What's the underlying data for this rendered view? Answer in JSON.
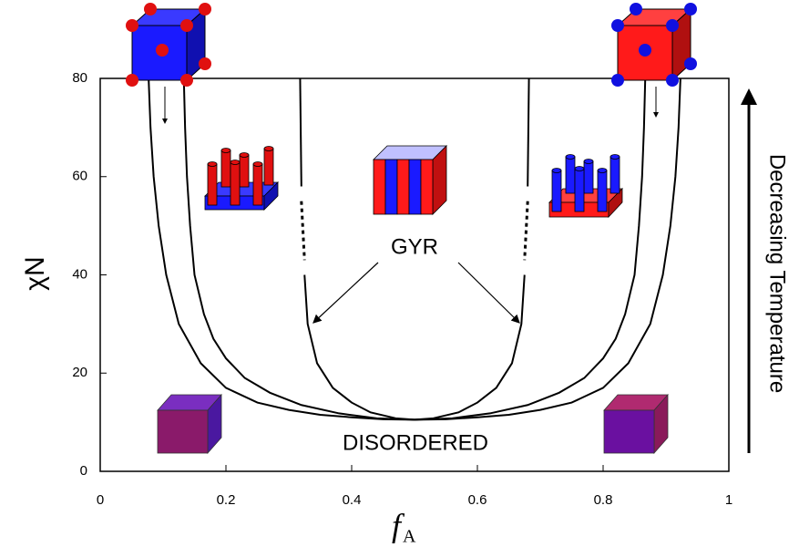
{
  "chart_data": {
    "type": "line",
    "xlabel": "f",
    "xlabel_subscript": "A",
    "ylabel": "χN",
    "annotations": [
      "GYR",
      "DISORDERED",
      "Decreasing Temperature"
    ],
    "xlim": [
      0,
      1
    ],
    "xticks": [
      0,
      0.2,
      0.4,
      0.6,
      0.8,
      1
    ],
    "ylim": [
      0,
      80
    ],
    "yticks": [
      0,
      20,
      40,
      60,
      80
    ],
    "series": [
      {
        "color": "#000",
        "style": "solid",
        "x": [
          0.077,
          0.08,
          0.085,
          0.093,
          0.105,
          0.125,
          0.16,
          0.2,
          0.25,
          0.3,
          0.35,
          0.4,
          0.45,
          0.5
        ],
        "values": [
          80,
          70,
          60,
          50,
          40,
          30,
          22,
          17,
          14,
          12.5,
          11.5,
          11,
          10.6,
          10.5
        ]
      },
      {
        "color": "#000",
        "style": "solid",
        "x": [
          0.133,
          0.135,
          0.138,
          0.143,
          0.15,
          0.165,
          0.18,
          0.2,
          0.23,
          0.27,
          0.32,
          0.38,
          0.44,
          0.5
        ],
        "values": [
          80,
          70,
          60,
          50,
          40,
          32,
          27,
          23,
          19,
          16,
          13.5,
          11.8,
          10.8,
          10.5
        ]
      },
      {
        "color": "#000",
        "style": "solid",
        "x": [
          0.318,
          0.32
        ],
        "values": [
          80,
          58
        ]
      },
      {
        "color": "#000",
        "style": "dotted",
        "x": [
          0.32,
          0.325
        ],
        "values": [
          55,
          43
        ]
      },
      {
        "color": "#000",
        "style": "solid",
        "x": [
          0.325,
          0.33,
          0.345,
          0.37,
          0.4,
          0.43,
          0.47,
          0.5
        ],
        "values": [
          40,
          30,
          22,
          17,
          14,
          12,
          10.8,
          10.5
        ]
      },
      {
        "color": "#000",
        "style": "solid",
        "x": [
          0.923,
          0.92,
          0.915,
          0.907,
          0.895,
          0.875,
          0.84,
          0.8,
          0.75,
          0.7,
          0.65,
          0.6,
          0.55,
          0.5
        ],
        "values": [
          80,
          70,
          60,
          50,
          40,
          30,
          22,
          17,
          14,
          12.5,
          11.5,
          11,
          10.6,
          10.5
        ]
      },
      {
        "color": "#000",
        "style": "solid",
        "x": [
          0.867,
          0.865,
          0.862,
          0.857,
          0.85,
          0.835,
          0.82,
          0.8,
          0.77,
          0.73,
          0.68,
          0.62,
          0.56,
          0.5
        ],
        "values": [
          80,
          70,
          60,
          50,
          40,
          32,
          27,
          23,
          19,
          16,
          13.5,
          11.8,
          10.8,
          10.5
        ]
      },
      {
        "color": "#000",
        "style": "solid",
        "x": [
          0.682,
          0.68
        ],
        "values": [
          80,
          58
        ]
      },
      {
        "color": "#000",
        "style": "dotted",
        "x": [
          0.68,
          0.675
        ],
        "values": [
          55,
          43
        ]
      },
      {
        "color": "#000",
        "style": "solid",
        "x": [
          0.675,
          0.67,
          0.655,
          0.63,
          0.6,
          0.57,
          0.53,
          0.5
        ],
        "values": [
          40,
          30,
          22,
          17,
          14,
          12,
          10.8,
          10.5
        ]
      }
    ]
  }
}
